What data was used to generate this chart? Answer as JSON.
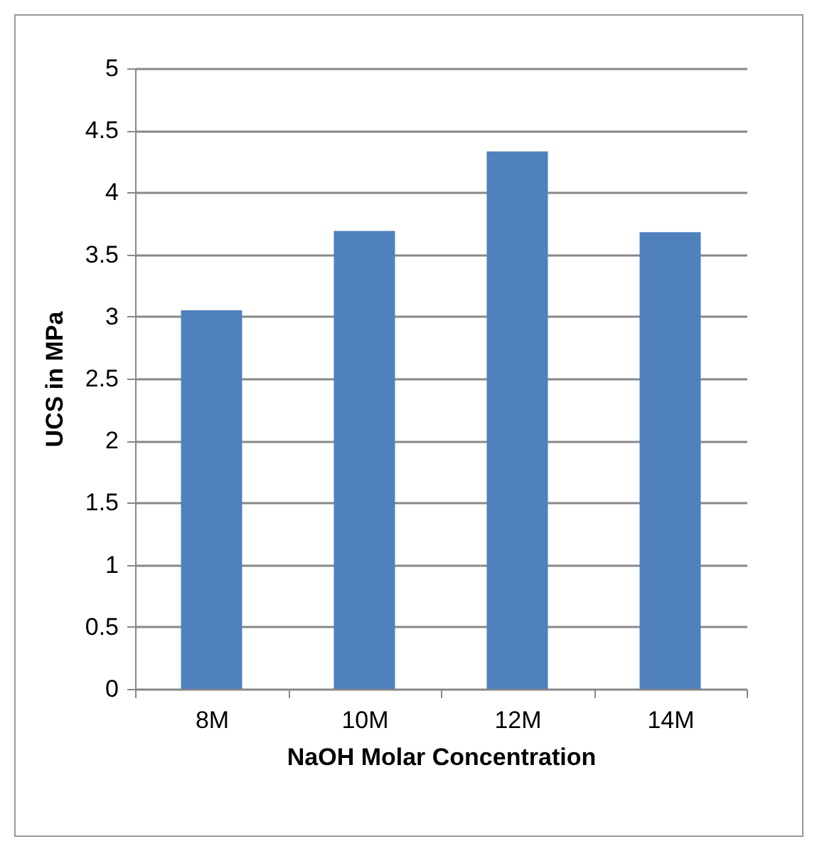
{
  "chart_data": {
    "type": "bar",
    "xlabel": "NaOH Molar Concentration",
    "ylabel": "UCS in MPa",
    "categories": [
      "8M",
      "10M",
      "12M",
      "14M"
    ],
    "values": [
      3.05,
      3.69,
      4.33,
      3.68
    ],
    "color": "#4f81bd",
    "ylim": [
      0,
      5
    ],
    "yticks": [
      0,
      0.5,
      1,
      1.5,
      2,
      2.5,
      3,
      3.5,
      4,
      4.5,
      5
    ],
    "grid": "y"
  }
}
